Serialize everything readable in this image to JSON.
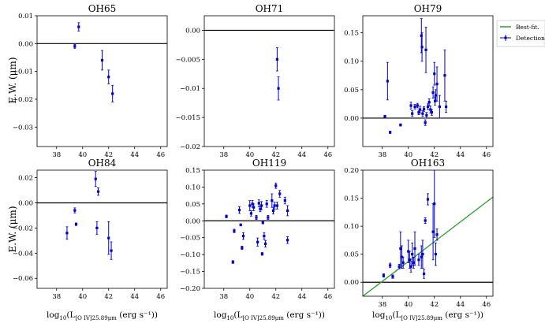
{
  "figure": {
    "y_label": "E.W. (μm)",
    "x_label_prefix": "log",
    "x_label_sub1": "10",
    "x_label_mid": "(L",
    "x_label_sub2": "[O IV]25.89μm",
    "x_label_suffix": " (erg s⁻¹))"
  },
  "legend": {
    "fit_label": "Best-fit.",
    "detections_label": "Detections"
  },
  "colors": {
    "points": "#0000cc",
    "fit": "#2ca02c",
    "zero": "#000000"
  },
  "chart_data": [
    {
      "type": "scatter",
      "title": "OH65",
      "xlim": [
        36.5,
        46.5
      ],
      "ylim": [
        -0.037,
        0.01
      ],
      "xticks": [
        38,
        40,
        42,
        44,
        46
      ],
      "yticks": [
        0.01,
        0.0,
        -0.01,
        -0.02,
        -0.03
      ],
      "points": [
        [
          39.4,
          -0.001,
          0.0007
        ],
        [
          39.7,
          0.006,
          0.0015
        ],
        [
          41.5,
          -0.006,
          0.0035
        ],
        [
          42.0,
          -0.012,
          0.0025
        ],
        [
          42.3,
          -0.018,
          0.003
        ]
      ],
      "fit": null
    },
    {
      "type": "scatter",
      "title": "OH71",
      "xlim": [
        36.5,
        46.5
      ],
      "ylim": [
        -0.02,
        0.0025
      ],
      "xticks": [
        38,
        40,
        42,
        44,
        46
      ],
      "yticks": [
        0.0,
        -0.005,
        -0.01,
        -0.015,
        -0.02
      ],
      "points": [
        [
          42.1,
          -0.005,
          0.002
        ],
        [
          42.2,
          -0.01,
          0.002
        ]
      ],
      "fit": null
    },
    {
      "type": "scatter",
      "title": "OH79",
      "xlim": [
        36.5,
        46.5
      ],
      "ylim": [
        -0.05,
        0.18
      ],
      "xticks": [
        38,
        40,
        42,
        44,
        46
      ],
      "yticks": [
        0.15,
        0.1,
        0.05,
        0.0
      ],
      "points": [
        [
          38.2,
          0.003,
          0.002
        ],
        [
          38.4,
          0.065,
          0.033
        ],
        [
          38.6,
          -0.025,
          0.002
        ],
        [
          39.4,
          -0.012,
          0.002
        ],
        [
          40.2,
          0.022,
          0.006
        ],
        [
          40.3,
          0.008,
          0.005
        ],
        [
          40.5,
          0.02,
          0.004
        ],
        [
          40.7,
          0.022,
          0.004
        ],
        [
          40.8,
          0.01,
          0.004
        ],
        [
          40.9,
          0.015,
          0.006
        ],
        [
          41.0,
          0.145,
          0.03
        ],
        [
          41.05,
          0.125,
          0.025
        ],
        [
          41.1,
          0.008,
          0.005
        ],
        [
          41.2,
          0.016,
          0.004
        ],
        [
          41.3,
          -0.008,
          0.005
        ],
        [
          41.35,
          0.12,
          0.04
        ],
        [
          41.4,
          0.005,
          0.005
        ],
        [
          41.5,
          0.02,
          0.005
        ],
        [
          41.6,
          0.028,
          0.006
        ],
        [
          41.7,
          0.015,
          0.006
        ],
        [
          41.8,
          0.01,
          0.005
        ],
        [
          41.9,
          0.045,
          0.01
        ],
        [
          42.0,
          0.078,
          0.02
        ],
        [
          42.05,
          0.03,
          0.007
        ],
        [
          42.1,
          0.04,
          0.01
        ],
        [
          42.2,
          0.06,
          0.03
        ],
        [
          42.4,
          0.02,
          0.02
        ],
        [
          42.8,
          0.075,
          0.045
        ],
        [
          42.9,
          0.02,
          0.01
        ]
      ],
      "fit": null
    },
    {
      "type": "scatter",
      "title": "OH84",
      "xlim": [
        36.5,
        46.5
      ],
      "ylim": [
        -0.068,
        0.026
      ],
      "xticks": [
        38,
        40,
        42,
        44,
        46
      ],
      "yticks": [
        0.02,
        0.0,
        -0.02,
        -0.04,
        -0.06
      ],
      "points": [
        [
          38.8,
          -0.024,
          0.005
        ],
        [
          39.4,
          -0.006,
          0.002
        ],
        [
          39.5,
          -0.017,
          0.001
        ],
        [
          41.0,
          0.019,
          0.006
        ],
        [
          41.2,
          0.009,
          0.003
        ],
        [
          41.1,
          -0.02,
          0.005
        ],
        [
          42.0,
          -0.028,
          0.013
        ],
        [
          42.2,
          -0.038,
          0.007
        ]
      ],
      "fit": null
    },
    {
      "type": "scatter",
      "title": "OH119",
      "xlim": [
        36.5,
        46.5
      ],
      "ylim": [
        -0.2,
        0.15
      ],
      "xticks": [
        38,
        40,
        42,
        44,
        46
      ],
      "yticks": [
        0.15,
        0.1,
        0.05,
        0.0,
        -0.05,
        -0.1,
        -0.15,
        -0.2
      ],
      "points": [
        [
          38.2,
          0.013,
          0.004
        ],
        [
          38.7,
          -0.122,
          0.004
        ],
        [
          38.8,
          -0.03,
          0.005
        ],
        [
          39.2,
          0.032,
          0.01
        ],
        [
          39.3,
          -0.012,
          0.003
        ],
        [
          39.4,
          -0.08,
          0.005
        ],
        [
          39.5,
          -0.045,
          0.01
        ],
        [
          40.0,
          0.045,
          0.015
        ],
        [
          40.1,
          0.022,
          0.008
        ],
        [
          40.2,
          0.05,
          0.01
        ],
        [
          40.3,
          0.04,
          0.01
        ],
        [
          40.5,
          0.01,
          0.006
        ],
        [
          40.6,
          -0.063,
          0.012
        ],
        [
          40.7,
          0.052,
          0.01
        ],
        [
          40.8,
          0.035,
          0.008
        ],
        [
          40.9,
          0.045,
          0.012
        ],
        [
          40.95,
          -0.098,
          0.004
        ],
        [
          41.0,
          -0.005,
          0.004
        ],
        [
          41.1,
          -0.045,
          0.01
        ],
        [
          41.2,
          -0.068,
          0.01
        ],
        [
          41.3,
          0.05,
          0.01
        ],
        [
          41.4,
          0.01,
          0.006
        ],
        [
          41.7,
          0.06,
          0.02
        ],
        [
          41.8,
          0.03,
          0.01
        ],
        [
          41.9,
          0.045,
          0.01
        ],
        [
          42.0,
          0.104,
          0.008
        ],
        [
          42.1,
          0.045,
          0.01
        ],
        [
          42.3,
          0.08,
          0.01
        ],
        [
          42.7,
          0.06,
          0.01
        ],
        [
          42.9,
          0.03,
          0.015
        ],
        [
          42.9,
          -0.057,
          0.01
        ]
      ],
      "fit": null
    },
    {
      "type": "scatter",
      "title": "OH163",
      "xlim": [
        36.5,
        46.5
      ],
      "ylim": [
        -0.025,
        0.2
      ],
      "xticks": [
        38,
        40,
        42,
        44,
        46
      ],
      "yticks": [
        0.2,
        0.15,
        0.1,
        0.05,
        0.0
      ],
      "points": [
        [
          38.1,
          0.012,
          0.003
        ],
        [
          38.6,
          0.03,
          0.004
        ],
        [
          38.8,
          0.01,
          0.003
        ],
        [
          39.3,
          0.028,
          0.004
        ],
        [
          39.4,
          0.06,
          0.03
        ],
        [
          39.5,
          0.045,
          0.02
        ],
        [
          39.6,
          0.035,
          0.01
        ],
        [
          40.0,
          0.055,
          0.02
        ],
        [
          40.1,
          0.04,
          0.015
        ],
        [
          40.2,
          0.028,
          0.01
        ],
        [
          40.3,
          0.05,
          0.02
        ],
        [
          40.4,
          0.035,
          0.01
        ],
        [
          40.5,
          0.06,
          0.03
        ],
        [
          40.8,
          0.04,
          0.01
        ],
        [
          41.0,
          0.045,
          0.02
        ],
        [
          41.1,
          0.05,
          0.025
        ],
        [
          41.2,
          0.015,
          0.008
        ],
        [
          41.3,
          0.11,
          0.005
        ],
        [
          41.5,
          0.148,
          0.01
        ],
        [
          41.9,
          0.09,
          0.05
        ],
        [
          42.0,
          0.14,
          0.06
        ],
        [
          42.1,
          0.05,
          0.02
        ],
        [
          42.2,
          0.085,
          0.01
        ]
      ],
      "fit": {
        "x0": 36.5,
        "y0": -0.025,
        "x1": 46.5,
        "y1": 0.152
      }
    }
  ]
}
